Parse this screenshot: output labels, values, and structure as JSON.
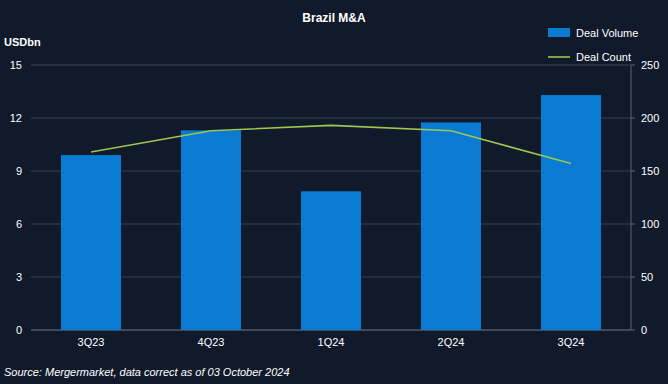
{
  "chart_data": {
    "type": "bar",
    "title": "Brazil M&A",
    "ylabel": "USDbn",
    "source": "Source: Mergermarket, data correct as of 03 October 2024",
    "categories": [
      "3Q23",
      "4Q23",
      "1Q24",
      "2Q24",
      "3Q24"
    ],
    "series": [
      {
        "name": "Deal Volume",
        "type": "bar",
        "color": "#0a7bd2",
        "values": [
          9.9,
          11.3,
          7.85,
          11.75,
          13.3
        ]
      },
      {
        "name": "Deal Count",
        "type": "line",
        "color": "#9bc84e",
        "axis": "y2",
        "values": [
          168,
          188,
          193,
          188,
          157
        ]
      }
    ],
    "ylim": [
      0,
      15
    ],
    "yticks": [
      0,
      3,
      6,
      9,
      12,
      15
    ],
    "y2lim": [
      0,
      250
    ],
    "y2ticks": [
      0,
      50,
      100,
      150,
      200,
      250
    ],
    "grid": true,
    "legend": "upper right"
  }
}
